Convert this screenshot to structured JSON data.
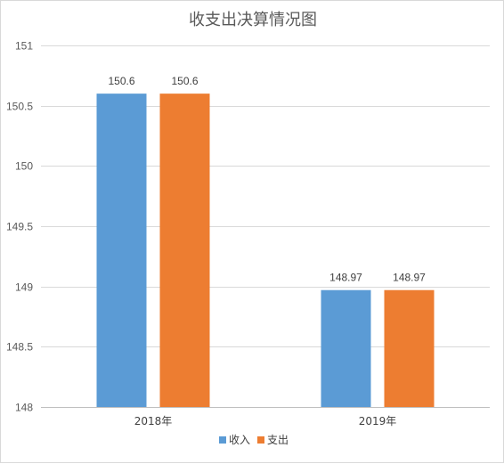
{
  "chart_data": {
    "type": "bar",
    "title": "收支出决算情况图",
    "xlabel": "",
    "ylabel": "",
    "categories": [
      "2018年",
      "2019年"
    ],
    "series": [
      {
        "name": "收入",
        "values": [
          150.6,
          148.97
        ],
        "color": "#5b9bd5"
      },
      {
        "name": "支出",
        "values": [
          150.6,
          148.97
        ],
        "color": "#ed7d31"
      }
    ],
    "ylim": [
      148,
      151
    ],
    "yticks": [
      "148",
      "148.5",
      "149",
      "149.5",
      "150",
      "150.5",
      "151"
    ],
    "ytick_values": [
      148,
      148.5,
      149,
      149.5,
      150,
      150.5,
      151
    ],
    "data_labels": [
      [
        "150.6",
        "148.97"
      ],
      [
        "150.6",
        "148.97"
      ]
    ],
    "grid": true,
    "legend_position": "bottom"
  }
}
